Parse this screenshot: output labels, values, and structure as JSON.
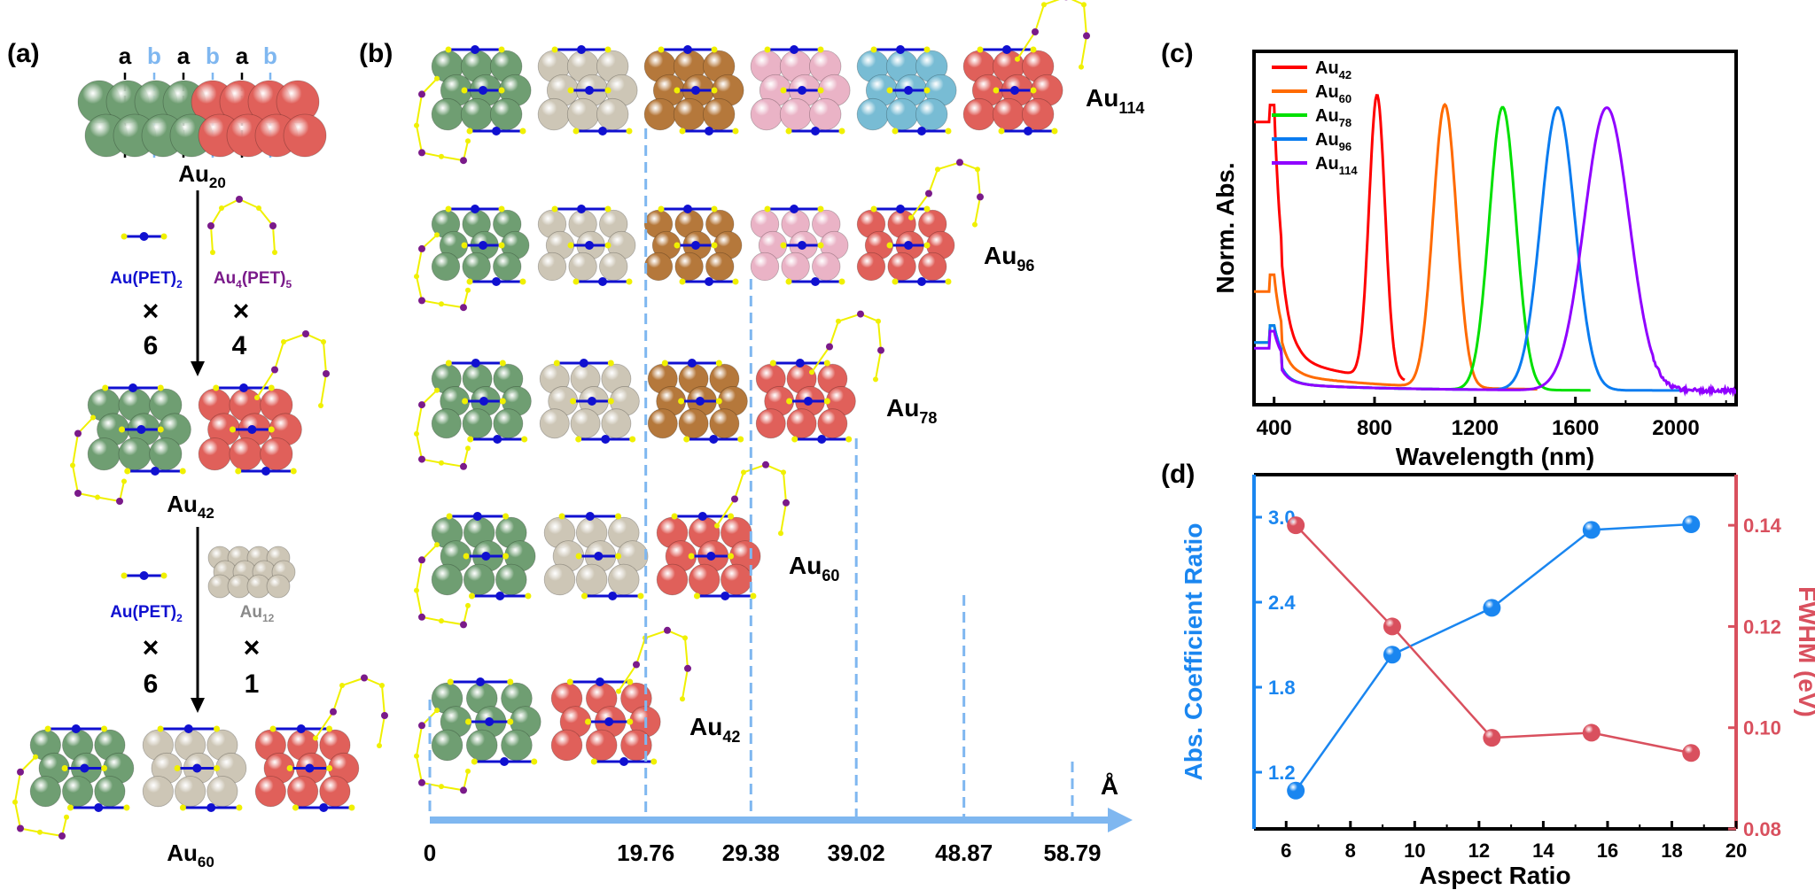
{
  "panels": {
    "a": "(a)",
    "b": "(b)",
    "c": "(c)",
    "d": "(d)"
  },
  "colors": {
    "green": "#6f9e72",
    "beige": "#cdc6b6",
    "brown": "#b5783b",
    "pink": "#eab3c6",
    "lightblue": "#78bcd4",
    "red": "#e0605a",
    "ligand_blue": "#1010d0",
    "ligand_purple": "#7a1a8a",
    "sulfur": "#f0f000",
    "axis_blue": "#7fb7f0",
    "series_left": "#1a86f0",
    "series_right": "#d9505e"
  },
  "panel_a": {
    "layer_letters": [
      "a",
      "b",
      "a",
      "b",
      "a",
      "b"
    ],
    "au20": {
      "base": "Au",
      "sub": "20"
    },
    "step1": {
      "left_label": {
        "base": "Au(PET)",
        "sub": "2"
      },
      "right_label": {
        "base": "Au",
        "sub1": "4",
        "mid": "(PET)",
        "sub2": "5"
      },
      "times": "×",
      "left_count": "6",
      "right_count": "4"
    },
    "au42": {
      "base": "Au",
      "sub": "42"
    },
    "step2": {
      "left_label": {
        "base": "Au(PET)",
        "sub": "2"
      },
      "right_label": {
        "base": "Au",
        "sub": "12"
      },
      "times": "×",
      "left_count": "6",
      "right_count": "1"
    },
    "au60": {
      "base": "Au",
      "sub": "60"
    }
  },
  "panel_b": {
    "rods": [
      {
        "label": {
          "base": "Au",
          "sub": "114"
        },
        "segments": [
          "green",
          "beige",
          "brown",
          "pink",
          "lightblue",
          "red"
        ]
      },
      {
        "label": {
          "base": "Au",
          "sub": "96"
        },
        "segments": [
          "green",
          "beige",
          "brown",
          "pink",
          "red"
        ]
      },
      {
        "label": {
          "base": "Au",
          "sub": "78"
        },
        "segments": [
          "green",
          "beige",
          "brown",
          "red"
        ]
      },
      {
        "label": {
          "base": "Au",
          "sub": "60"
        },
        "segments": [
          "green",
          "beige",
          "red"
        ]
      },
      {
        "label": {
          "base": "Au",
          "sub": "42"
        },
        "segments": [
          "green",
          "red"
        ]
      }
    ],
    "axis_unit": "Å",
    "length_ticks": [
      "0",
      "19.76",
      "29.38",
      "39.02",
      "48.87",
      "58.79"
    ],
    "length_values": [
      0,
      19.76,
      29.38,
      39.02,
      48.87,
      58.79
    ]
  },
  "chart_data": [
    {
      "type": "line",
      "panel": "c",
      "xlabel": "Wavelength (nm)",
      "ylabel": "Norm. Abs.",
      "xlim": [
        320,
        2240
      ],
      "ylim": [
        -0.05,
        1.2
      ],
      "xticks": [
        "400",
        "800",
        "1200",
        "1600",
        "2000"
      ],
      "xtick_values": [
        400,
        800,
        1200,
        1600,
        2000
      ],
      "legend_placement": "top-left",
      "series": [
        {
          "name": "Au42",
          "name_base": "Au",
          "name_sub": "42",
          "color": "#ff0000",
          "peak_nm": 810,
          "fwhm_nm": 75,
          "abs_at_320nm": 0.85,
          "baseline": 0.1,
          "x_range": [
            320,
            920
          ]
        },
        {
          "name": "Au60",
          "name_base": "Au",
          "name_sub": "60",
          "color": "#ff6a00",
          "peak_nm": 1080,
          "fwhm_nm": 110,
          "abs_at_320nm": 0.3,
          "baseline": 0.05,
          "x_range": [
            320,
            1450
          ]
        },
        {
          "name": "Au78",
          "name_base": "Au",
          "name_sub": "78",
          "color": "#00e000",
          "peak_nm": 1310,
          "fwhm_nm": 125,
          "abs_at_320nm": 0.15,
          "baseline": 0.02,
          "x_range": [
            320,
            1660
          ]
        },
        {
          "name": "Au96",
          "name_base": "Au",
          "name_sub": "96",
          "color": "#0a7cf0",
          "peak_nm": 1530,
          "fwhm_nm": 160,
          "abs_at_320nm": 0.15,
          "baseline": 0.02,
          "x_range": [
            320,
            2040
          ]
        },
        {
          "name": "Au114",
          "name_base": "Au",
          "name_sub": "114",
          "color": "#9000ff",
          "peak_nm": 1725,
          "fwhm_nm": 210,
          "abs_at_320nm": 0.13,
          "baseline": 0.02,
          "x_range": [
            320,
            2240
          ]
        }
      ]
    },
    {
      "type": "line",
      "panel": "d",
      "xlabel": "Aspect Ratio",
      "ylabel_left": "Abs. Coefficient Ratio",
      "ylabel_right": "FWHM (eV)",
      "xlim": [
        5,
        20
      ],
      "ylim_left": [
        0.8,
        3.3
      ],
      "ylim_right": [
        0.08,
        0.15
      ],
      "xticks": [
        "6",
        "8",
        "10",
        "12",
        "14",
        "16",
        "18",
        "20"
      ],
      "xtick_values": [
        6,
        8,
        10,
        12,
        14,
        16,
        18,
        20
      ],
      "yticks_left": [
        "1.2",
        "1.8",
        "2.4",
        "3.0"
      ],
      "ytick_values_left": [
        1.2,
        1.8,
        2.4,
        3.0
      ],
      "yticks_right": [
        "0.08",
        "0.10",
        "0.12",
        "0.14"
      ],
      "ytick_values_right": [
        0.08,
        0.1,
        0.12,
        0.14
      ],
      "x": [
        6.3,
        9.3,
        12.4,
        15.5,
        18.6
      ],
      "series": [
        {
          "axis": "left",
          "color": "#1a86f0",
          "values": [
            1.07,
            2.03,
            2.36,
            2.91,
            2.95
          ]
        },
        {
          "axis": "right",
          "color": "#d9505e",
          "values": [
            0.14,
            0.12,
            0.098,
            0.099,
            0.095
          ]
        }
      ]
    }
  ]
}
